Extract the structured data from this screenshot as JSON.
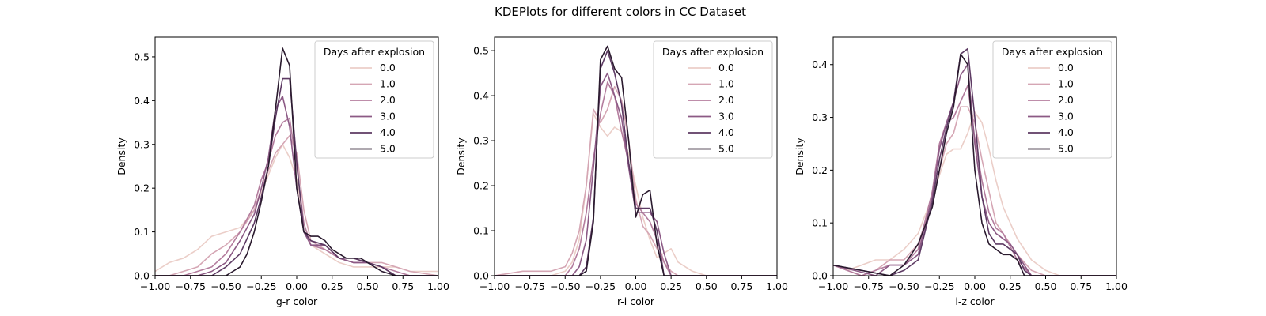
{
  "figure": {
    "suptitle": "KDEPlots for different colors in CC Dataset"
  },
  "legend": {
    "title": "Days after explosion",
    "entries": [
      {
        "label": "0.0",
        "color": "#ebcec8"
      },
      {
        "label": "1.0",
        "color": "#d5a6b4"
      },
      {
        "label": "2.0",
        "color": "#b47d9e"
      },
      {
        "label": "3.0",
        "color": "#8c5a85"
      },
      {
        "label": "4.0",
        "color": "#5d3a63"
      },
      {
        "label": "5.0",
        "color": "#2a1a2e"
      }
    ]
  },
  "chart_data": [
    {
      "type": "line",
      "xlabel": "g-r color",
      "ylabel": "Density",
      "xlim": [
        -1.0,
        1.0
      ],
      "ylim": [
        0,
        0.545
      ],
      "xticks": [
        -1.0,
        -0.75,
        -0.5,
        -0.25,
        0.0,
        0.25,
        0.5,
        0.75,
        1.0
      ],
      "xtick_labels": [
        "−1.00",
        "−0.75",
        "−0.50",
        "−0.25",
        "0.00",
        "0.25",
        "0.50",
        "0.75",
        "1.00"
      ],
      "yticks": [
        0.0,
        0.1,
        0.2,
        0.3,
        0.4,
        0.5
      ],
      "ytick_labels": [
        "0.0",
        "0.1",
        "0.2",
        "0.3",
        "0.4",
        "0.5"
      ],
      "legend_position": "upper right",
      "series": [
        {
          "name": "0.0",
          "x": [
            -1.0,
            -0.9,
            -0.8,
            -0.7,
            -0.6,
            -0.5,
            -0.4,
            -0.3,
            -0.2,
            -0.15,
            -0.1,
            -0.05,
            0.0,
            0.05,
            0.1,
            0.2,
            0.3,
            0.4,
            0.5,
            0.6,
            0.7,
            0.8,
            0.9,
            1.0
          ],
          "y": [
            0.01,
            0.03,
            0.04,
            0.06,
            0.09,
            0.1,
            0.11,
            0.15,
            0.23,
            0.27,
            0.3,
            0.27,
            0.22,
            0.12,
            0.07,
            0.05,
            0.03,
            0.02,
            0.02,
            0.02,
            0.02,
            0.01,
            0.01,
            0.01
          ]
        },
        {
          "name": "1.0",
          "x": [
            -1.0,
            -0.9,
            -0.8,
            -0.7,
            -0.6,
            -0.5,
            -0.4,
            -0.3,
            -0.25,
            -0.2,
            -0.15,
            -0.1,
            -0.05,
            0.0,
            0.05,
            0.1,
            0.2,
            0.3,
            0.4,
            0.5,
            0.6,
            0.7,
            0.8,
            1.0
          ],
          "y": [
            0.0,
            0.0,
            0.01,
            0.02,
            0.05,
            0.07,
            0.1,
            0.15,
            0.2,
            0.24,
            0.28,
            0.3,
            0.32,
            0.28,
            0.15,
            0.08,
            0.06,
            0.04,
            0.03,
            0.03,
            0.03,
            0.02,
            0.01,
            0.0
          ]
        },
        {
          "name": "2.0",
          "x": [
            -1.0,
            -0.8,
            -0.7,
            -0.6,
            -0.5,
            -0.4,
            -0.3,
            -0.25,
            -0.2,
            -0.15,
            -0.1,
            -0.05,
            0.0,
            0.05,
            0.1,
            0.2,
            0.3,
            0.4,
            0.5,
            0.6,
            0.7,
            0.8,
            1.0
          ],
          "y": [
            0.0,
            0.0,
            0.01,
            0.02,
            0.05,
            0.1,
            0.16,
            0.22,
            0.26,
            0.32,
            0.35,
            0.36,
            0.25,
            0.12,
            0.07,
            0.06,
            0.04,
            0.03,
            0.03,
            0.02,
            0.01,
            0.0,
            0.0
          ]
        },
        {
          "name": "3.0",
          "x": [
            -1.0,
            -0.7,
            -0.6,
            -0.5,
            -0.4,
            -0.3,
            -0.25,
            -0.2,
            -0.15,
            -0.1,
            -0.05,
            0.0,
            0.05,
            0.1,
            0.2,
            0.3,
            0.4,
            0.5,
            0.6,
            0.7,
            1.0
          ],
          "y": [
            0.0,
            0.0,
            0.01,
            0.03,
            0.08,
            0.14,
            0.2,
            0.27,
            0.38,
            0.41,
            0.34,
            0.2,
            0.1,
            0.07,
            0.07,
            0.04,
            0.03,
            0.03,
            0.02,
            0.0,
            0.0
          ]
        },
        {
          "name": "4.0",
          "x": [
            -1.0,
            -0.6,
            -0.5,
            -0.4,
            -0.3,
            -0.25,
            -0.2,
            -0.15,
            -0.1,
            -0.05,
            0.0,
            0.05,
            0.1,
            0.2,
            0.3,
            0.4,
            0.5,
            0.6,
            0.7,
            1.0
          ],
          "y": [
            0.0,
            0.0,
            0.02,
            0.05,
            0.12,
            0.18,
            0.25,
            0.36,
            0.45,
            0.45,
            0.26,
            0.1,
            0.08,
            0.07,
            0.04,
            0.04,
            0.03,
            0.02,
            0.0,
            0.0
          ]
        },
        {
          "name": "5.0",
          "x": [
            -1.0,
            -0.5,
            -0.45,
            -0.4,
            -0.35,
            -0.3,
            -0.25,
            -0.2,
            -0.15,
            -0.1,
            -0.05,
            0.0,
            0.05,
            0.1,
            0.15,
            0.2,
            0.25,
            0.3,
            0.35,
            0.4,
            0.45,
            0.5,
            0.6,
            0.7,
            1.0
          ],
          "y": [
            0.0,
            0.0,
            0.01,
            0.02,
            0.05,
            0.1,
            0.17,
            0.25,
            0.38,
            0.52,
            0.48,
            0.2,
            0.1,
            0.09,
            0.09,
            0.08,
            0.06,
            0.05,
            0.04,
            0.04,
            0.04,
            0.03,
            0.01,
            0.0,
            0.0
          ]
        }
      ]
    },
    {
      "type": "line",
      "xlabel": "r-i color",
      "ylabel": "Density",
      "xlim": [
        -1.0,
        1.0
      ],
      "ylim": [
        0,
        0.53
      ],
      "xticks": [
        -1.0,
        -0.75,
        -0.5,
        -0.25,
        0.0,
        0.25,
        0.5,
        0.75,
        1.0
      ],
      "xtick_labels": [
        "−1.00",
        "−0.75",
        "−0.50",
        "−0.25",
        "0.00",
        "0.25",
        "0.50",
        "0.75",
        "1.00"
      ],
      "yticks": [
        0.0,
        0.1,
        0.2,
        0.3,
        0.4,
        0.5
      ],
      "ytick_labels": [
        "0.0",
        "0.1",
        "0.2",
        "0.3",
        "0.4",
        "0.5"
      ],
      "legend_position": "upper right",
      "series": [
        {
          "name": "0.0",
          "x": [
            -1.0,
            -0.6,
            -0.5,
            -0.45,
            -0.4,
            -0.35,
            -0.3,
            -0.25,
            -0.2,
            -0.15,
            -0.1,
            -0.05,
            0.0,
            0.05,
            0.1,
            0.15,
            0.2,
            0.25,
            0.3,
            0.4,
            0.5,
            1.0
          ],
          "y": [
            0.0,
            0.0,
            0.01,
            0.03,
            0.08,
            0.2,
            0.36,
            0.33,
            0.31,
            0.33,
            0.32,
            0.27,
            0.2,
            0.13,
            0.08,
            0.04,
            0.05,
            0.06,
            0.03,
            0.01,
            0.0,
            0.0
          ]
        },
        {
          "name": "1.0",
          "x": [
            -1.0,
            -0.8,
            -0.6,
            -0.5,
            -0.45,
            -0.4,
            -0.35,
            -0.3,
            -0.25,
            -0.2,
            -0.15,
            -0.1,
            -0.05,
            0.0,
            0.05,
            0.1,
            0.15,
            0.2,
            0.25,
            0.3,
            1.0
          ],
          "y": [
            0.0,
            0.01,
            0.01,
            0.02,
            0.05,
            0.1,
            0.2,
            0.37,
            0.34,
            0.37,
            0.42,
            0.39,
            0.3,
            0.17,
            0.11,
            0.09,
            0.06,
            0.03,
            0.01,
            0.0,
            0.0
          ]
        },
        {
          "name": "2.0",
          "x": [
            -1.0,
            -0.5,
            -0.45,
            -0.4,
            -0.35,
            -0.3,
            -0.25,
            -0.2,
            -0.15,
            -0.1,
            -0.05,
            0.0,
            0.05,
            0.1,
            0.15,
            0.2,
            0.25,
            1.0
          ],
          "y": [
            0.0,
            0.0,
            0.02,
            0.06,
            0.14,
            0.26,
            0.36,
            0.43,
            0.4,
            0.32,
            0.25,
            0.16,
            0.14,
            0.12,
            0.08,
            0.03,
            0.0,
            0.0
          ]
        },
        {
          "name": "3.0",
          "x": [
            -1.0,
            -0.45,
            -0.4,
            -0.35,
            -0.3,
            -0.25,
            -0.2,
            -0.15,
            -0.1,
            -0.05,
            0.0,
            0.05,
            0.1,
            0.15,
            0.2,
            0.25,
            1.0
          ],
          "y": [
            0.0,
            0.0,
            0.02,
            0.08,
            0.24,
            0.42,
            0.45,
            0.4,
            0.35,
            0.24,
            0.14,
            0.14,
            0.14,
            0.12,
            0.05,
            0.0,
            0.0
          ]
        },
        {
          "name": "4.0",
          "x": [
            -1.0,
            -0.4,
            -0.35,
            -0.3,
            -0.25,
            -0.2,
            -0.15,
            -0.1,
            -0.05,
            0.0,
            0.05,
            0.1,
            0.15,
            0.2,
            1.0
          ],
          "y": [
            0.0,
            0.0,
            0.02,
            0.13,
            0.46,
            0.5,
            0.45,
            0.38,
            0.25,
            0.15,
            0.15,
            0.15,
            0.1,
            0.0,
            0.0
          ]
        },
        {
          "name": "5.0",
          "x": [
            -1.0,
            -0.4,
            -0.35,
            -0.3,
            -0.25,
            -0.2,
            -0.15,
            -0.1,
            -0.05,
            0.0,
            0.05,
            0.1,
            0.15,
            0.2,
            1.0
          ],
          "y": [
            0.0,
            0.0,
            0.01,
            0.12,
            0.48,
            0.51,
            0.46,
            0.44,
            0.3,
            0.13,
            0.18,
            0.19,
            0.07,
            0.0,
            0.0
          ]
        }
      ]
    },
    {
      "type": "line",
      "xlabel": "i-z color",
      "ylabel": "Density",
      "xlim": [
        -1.0,
        1.0
      ],
      "ylim": [
        0,
        0.452
      ],
      "xticks": [
        -1.0,
        -0.75,
        -0.5,
        -0.25,
        0.0,
        0.25,
        0.5,
        0.75,
        1.0
      ],
      "xtick_labels": [
        "−1.00",
        "−0.75",
        "−0.50",
        "−0.25",
        "0.00",
        "0.25",
        "0.50",
        "0.75",
        "1.00"
      ],
      "yticks": [
        0.0,
        0.1,
        0.2,
        0.3,
        0.4
      ],
      "ytick_labels": [
        "0.0",
        "0.1",
        "0.2",
        "0.3",
        "0.4"
      ],
      "legend_position": "upper right",
      "series": [
        {
          "name": "0.0",
          "x": [
            -1.0,
            -0.9,
            -0.8,
            -0.7,
            -0.6,
            -0.5,
            -0.4,
            -0.3,
            -0.2,
            -0.15,
            -0.1,
            -0.05,
            0.0,
            0.05,
            0.1,
            0.15,
            0.2,
            0.3,
            0.4,
            0.5,
            0.6,
            1.0
          ],
          "y": [
            0.02,
            0.01,
            0.02,
            0.03,
            0.03,
            0.05,
            0.08,
            0.15,
            0.23,
            0.24,
            0.24,
            0.27,
            0.31,
            0.29,
            0.24,
            0.18,
            0.13,
            0.07,
            0.03,
            0.01,
            0.0,
            0.0
          ]
        },
        {
          "name": "1.0",
          "x": [
            -1.0,
            -0.9,
            -0.8,
            -0.7,
            -0.6,
            -0.5,
            -0.4,
            -0.3,
            -0.25,
            -0.2,
            -0.15,
            -0.1,
            -0.05,
            0.0,
            0.05,
            0.1,
            0.15,
            0.2,
            0.3,
            0.4,
            0.5,
            1.0
          ],
          "y": [
            0.02,
            0.01,
            0.0,
            0.01,
            0.03,
            0.03,
            0.06,
            0.14,
            0.2,
            0.25,
            0.27,
            0.32,
            0.32,
            0.29,
            0.22,
            0.16,
            0.1,
            0.08,
            0.04,
            0.01,
            0.0,
            0.0
          ]
        },
        {
          "name": "2.0",
          "x": [
            -1.0,
            -0.8,
            -0.7,
            -0.6,
            -0.5,
            -0.4,
            -0.3,
            -0.25,
            -0.2,
            -0.15,
            -0.1,
            -0.05,
            0.0,
            0.05,
            0.1,
            0.15,
            0.2,
            0.3,
            0.4,
            1.0
          ],
          "y": [
            0.02,
            0.0,
            0.01,
            0.02,
            0.02,
            0.05,
            0.16,
            0.25,
            0.29,
            0.3,
            0.33,
            0.36,
            0.26,
            0.18,
            0.12,
            0.09,
            0.08,
            0.03,
            0.0,
            0.0
          ]
        },
        {
          "name": "3.0",
          "x": [
            -1.0,
            -0.7,
            -0.6,
            -0.5,
            -0.4,
            -0.3,
            -0.25,
            -0.2,
            -0.15,
            -0.1,
            -0.05,
            0.0,
            0.05,
            0.1,
            0.15,
            0.2,
            0.25,
            0.3,
            0.4,
            1.0
          ],
          "y": [
            0.02,
            0.0,
            0.02,
            0.02,
            0.04,
            0.15,
            0.24,
            0.29,
            0.33,
            0.38,
            0.4,
            0.25,
            0.15,
            0.1,
            0.08,
            0.07,
            0.06,
            0.04,
            0.0,
            0.0
          ]
        },
        {
          "name": "4.0",
          "x": [
            -1.0,
            -0.6,
            -0.5,
            -0.45,
            -0.4,
            -0.3,
            -0.25,
            -0.2,
            -0.15,
            -0.1,
            -0.05,
            0.0,
            0.05,
            0.1,
            0.15,
            0.2,
            0.25,
            0.3,
            0.35,
            0.4,
            1.0
          ],
          "y": [
            0.02,
            0.0,
            0.01,
            0.02,
            0.03,
            0.14,
            0.22,
            0.28,
            0.33,
            0.42,
            0.43,
            0.3,
            0.15,
            0.08,
            0.06,
            0.06,
            0.05,
            0.04,
            0.01,
            0.0,
            0.0
          ]
        },
        {
          "name": "5.0",
          "x": [
            -1.0,
            -0.6,
            -0.5,
            -0.45,
            -0.4,
            -0.3,
            -0.25,
            -0.2,
            -0.15,
            -0.1,
            -0.05,
            0.0,
            0.05,
            0.1,
            0.15,
            0.2,
            0.25,
            0.3,
            0.35,
            1.0
          ],
          "y": [
            0.02,
            0.0,
            0.02,
            0.04,
            0.06,
            0.13,
            0.2,
            0.27,
            0.32,
            0.42,
            0.4,
            0.2,
            0.1,
            0.06,
            0.05,
            0.04,
            0.04,
            0.03,
            0.0,
            0.0
          ]
        }
      ]
    }
  ]
}
